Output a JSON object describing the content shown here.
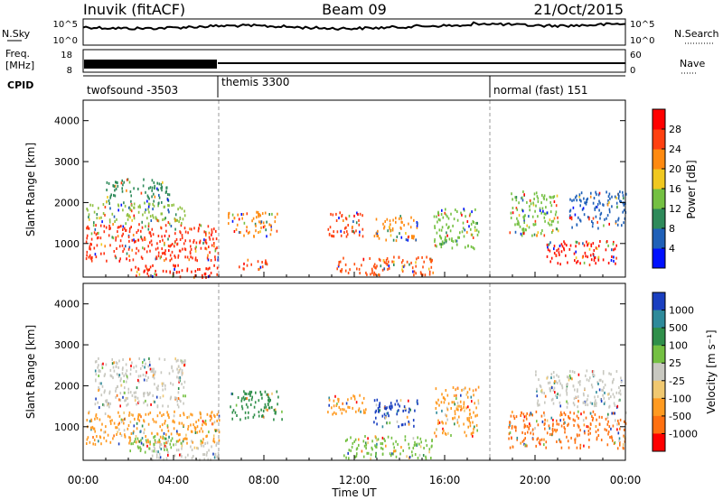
{
  "header": {
    "station": "Inuvik (fitACF)",
    "beam": "Beam 09",
    "date": "21/Oct/2015"
  },
  "noise_panel": {
    "left_label": "N.Sky",
    "right_label": "N.Search",
    "left_ticks": [
      "10^5",
      "10^0"
    ],
    "right_ticks": [
      "10^5",
      "10^0"
    ]
  },
  "freq_panel": {
    "left_label_1": "Freq.",
    "left_label_2": "[MHz]",
    "right_label": "Nave",
    "left_ticks": [
      "18",
      "8"
    ],
    "right_ticks": [
      "60",
      "0"
    ]
  },
  "cpid_panel": {
    "label": "CPID",
    "segments": [
      {
        "name": "twofsound -3503",
        "start_hour": 0
      },
      {
        "name": "themis 3300",
        "start_hour": 6
      },
      {
        "name": "normal (fast) 151",
        "start_hour": 18
      }
    ]
  },
  "chart_data": [
    {
      "type": "heatmap",
      "title": "Power",
      "ylabel": "Slant Range [km]",
      "xlabel": "Time UT",
      "xlim_hours": [
        0,
        24
      ],
      "ylim": [
        180,
        4500
      ],
      "yticks": [
        "1000",
        "2000",
        "3000",
        "4000"
      ],
      "xticks": [
        "00:00",
        "04:00",
        "08:00",
        "12:00",
        "16:00",
        "20:00",
        "00:00"
      ],
      "colorbar": {
        "label": "Power [dB]",
        "ticks": [
          "4",
          "8",
          "12",
          "16",
          "20",
          "24",
          "28"
        ],
        "colors": [
          "#0010ff",
          "#1f60b8",
          "#2e8a5a",
          "#74c042",
          "#f0c820",
          "#ff8a10",
          "#ff4010",
          "#ff0000"
        ]
      },
      "regions": [
        {
          "t0": 0.1,
          "t1": 6.0,
          "r0": 600,
          "r1": 1500,
          "color": "#ff3010"
        },
        {
          "t0": 0.1,
          "t1": 4.5,
          "r0": 1500,
          "r1": 2000,
          "color": "#8fc040"
        },
        {
          "t0": 1.0,
          "t1": 3.8,
          "r0": 2000,
          "r1": 2600,
          "color": "#2e8a5a"
        },
        {
          "t0": 2.0,
          "t1": 6.0,
          "r0": 200,
          "r1": 500,
          "color": "#ff2000"
        },
        {
          "t0": 6.4,
          "t1": 8.6,
          "r0": 1200,
          "r1": 1800,
          "color": "#ff8a10"
        },
        {
          "t0": 6.8,
          "t1": 8.2,
          "r0": 400,
          "r1": 650,
          "color": "#ff4010"
        },
        {
          "t0": 10.8,
          "t1": 12.4,
          "r0": 1200,
          "r1": 1800,
          "color": "#ff4010"
        },
        {
          "t0": 12.8,
          "t1": 14.8,
          "r0": 1100,
          "r1": 1700,
          "color": "#ff8a10"
        },
        {
          "t0": 11.2,
          "t1": 15.5,
          "r0": 250,
          "r1": 700,
          "color": "#ff5010"
        },
        {
          "t0": 15.5,
          "t1": 17.5,
          "r0": 900,
          "r1": 1900,
          "color": "#74c042"
        },
        {
          "t0": 18.8,
          "t1": 21.0,
          "r0": 1200,
          "r1": 2300,
          "color": "#74c042"
        },
        {
          "t0": 20.5,
          "t1": 23.6,
          "r0": 500,
          "r1": 1100,
          "color": "#ff1000"
        },
        {
          "t0": 21.5,
          "t1": 24.0,
          "r0": 1400,
          "r1": 2300,
          "color": "#1f60b8"
        }
      ]
    },
    {
      "type": "heatmap",
      "title": "Velocity",
      "ylabel": "Slant Range [km]",
      "xlabel": "Time UT",
      "xlim_hours": [
        0,
        24
      ],
      "ylim": [
        180,
        4500
      ],
      "yticks": [
        "1000",
        "2000",
        "3000",
        "4000"
      ],
      "xticks": [
        "00:00",
        "04:00",
        "08:00",
        "12:00",
        "16:00",
        "20:00",
        "00:00"
      ],
      "colorbar": {
        "label": "Velocity [m s⁻¹]",
        "ticks": [
          "1000",
          "500",
          "100",
          "25",
          "-25",
          "-100",
          "-500",
          "-1000"
        ],
        "colors": [
          "#1a3fc0",
          "#2e8a9a",
          "#2f8f4a",
          "#74c042",
          "#c8c8c0",
          "#f0c870",
          "#ff9a20",
          "#ff7010",
          "#ff0000"
        ]
      },
      "regions": [
        {
          "t0": 0.1,
          "t1": 6.0,
          "r0": 600,
          "r1": 1400,
          "color": "#ff9a20"
        },
        {
          "t0": 0.5,
          "t1": 4.5,
          "r0": 1500,
          "r1": 2700,
          "color": "#c8c8c0"
        },
        {
          "t0": 3.0,
          "t1": 6.0,
          "r0": 200,
          "r1": 700,
          "color": "#c8c8c0"
        },
        {
          "t0": 2.0,
          "t1": 4.0,
          "r0": 400,
          "r1": 800,
          "color": "#74c042"
        },
        {
          "t0": 6.4,
          "t1": 8.8,
          "r0": 1200,
          "r1": 1900,
          "color": "#2f8f4a"
        },
        {
          "t0": 10.8,
          "t1": 12.5,
          "r0": 1300,
          "r1": 1800,
          "color": "#ff9a20"
        },
        {
          "t0": 12.8,
          "t1": 14.8,
          "r0": 1000,
          "r1": 1700,
          "color": "#1a3fc0"
        },
        {
          "t0": 11.5,
          "t1": 15.5,
          "r0": 250,
          "r1": 800,
          "color": "#74c042"
        },
        {
          "t0": 15.5,
          "t1": 17.5,
          "r0": 800,
          "r1": 2000,
          "color": "#ff9a20"
        },
        {
          "t0": 18.8,
          "t1": 24.0,
          "r0": 500,
          "r1": 1400,
          "color": "#ff7010"
        },
        {
          "t0": 20.0,
          "t1": 23.8,
          "r0": 1500,
          "r1": 2400,
          "color": "#c8c8c0"
        }
      ]
    }
  ]
}
